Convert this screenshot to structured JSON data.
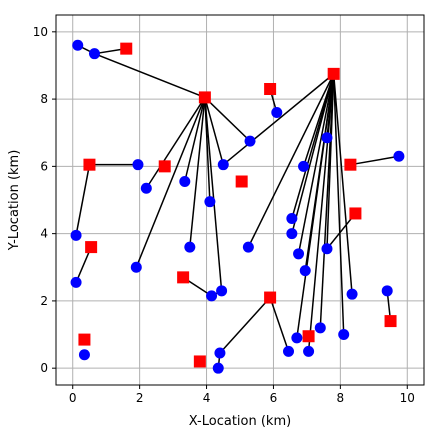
{
  "chart_data": {
    "type": "scatter",
    "xlabel": "X-Location (km)",
    "ylabel": "Y-Location (km)",
    "xlim": [
      -0.5,
      10.5
    ],
    "ylim": [
      -0.5,
      10.5
    ],
    "xticks": [
      0,
      2,
      4,
      6,
      8,
      10
    ],
    "yticks": [
      0,
      2,
      4,
      6,
      8,
      10
    ],
    "grid": true,
    "colors": {
      "customer": "#0000ff",
      "facility": "#ff0000",
      "link": "#000000",
      "grid": "#b0b0b0"
    },
    "facilities": [
      {
        "x": 1.6,
        "y": 9.5
      },
      {
        "x": 3.95,
        "y": 8.05
      },
      {
        "x": 5.9,
        "y": 8.3
      },
      {
        "x": 7.8,
        "y": 8.75
      },
      {
        "x": 0.5,
        "y": 6.05
      },
      {
        "x": 2.75,
        "y": 6.0
      },
      {
        "x": 8.3,
        "y": 6.05
      },
      {
        "x": 5.05,
        "y": 5.55
      },
      {
        "x": 8.45,
        "y": 4.6
      },
      {
        "x": 0.55,
        "y": 3.6
      },
      {
        "x": 3.3,
        "y": 2.7
      },
      {
        "x": 5.9,
        "y": 2.1
      },
      {
        "x": 9.5,
        "y": 1.4
      },
      {
        "x": 0.35,
        "y": 0.85
      },
      {
        "x": 7.05,
        "y": 0.95
      },
      {
        "x": 3.8,
        "y": 0.2
      }
    ],
    "customers": [
      {
        "x": 0.15,
        "y": 9.6
      },
      {
        "x": 0.65,
        "y": 9.35
      },
      {
        "x": 6.1,
        "y": 7.6
      },
      {
        "x": 5.3,
        "y": 6.75
      },
      {
        "x": 7.6,
        "y": 6.85
      },
      {
        "x": 4.5,
        "y": 6.05
      },
      {
        "x": 6.9,
        "y": 6.0
      },
      {
        "x": 9.75,
        "y": 6.3
      },
      {
        "x": 1.95,
        "y": 6.05
      },
      {
        "x": 2.2,
        "y": 5.35
      },
      {
        "x": 3.35,
        "y": 5.55
      },
      {
        "x": 4.1,
        "y": 4.95
      },
      {
        "x": 6.55,
        "y": 4.45
      },
      {
        "x": 6.55,
        "y": 4.0
      },
      {
        "x": 0.1,
        "y": 3.95
      },
      {
        "x": 3.5,
        "y": 3.6
      },
      {
        "x": 5.25,
        "y": 3.6
      },
      {
        "x": 7.6,
        "y": 3.55
      },
      {
        "x": 6.75,
        "y": 3.4
      },
      {
        "x": 1.9,
        "y": 3.0
      },
      {
        "x": 6.95,
        "y": 2.9
      },
      {
        "x": 0.1,
        "y": 2.55
      },
      {
        "x": 4.45,
        "y": 2.3
      },
      {
        "x": 4.15,
        "y": 2.15
      },
      {
        "x": 8.35,
        "y": 2.2
      },
      {
        "x": 9.4,
        "y": 2.3
      },
      {
        "x": 7.4,
        "y": 1.2
      },
      {
        "x": 8.1,
        "y": 1.0
      },
      {
        "x": 6.7,
        "y": 0.9
      },
      {
        "x": 6.45,
        "y": 0.5
      },
      {
        "x": 7.05,
        "y": 0.5
      },
      {
        "x": 4.4,
        "y": 0.45
      },
      {
        "x": 0.35,
        "y": 0.4
      },
      {
        "x": 4.35,
        "y": 0.0
      }
    ],
    "links": [
      [
        0.65,
        9.35,
        1.6,
        9.5
      ],
      [
        0.15,
        9.6,
        0.65,
        9.35
      ],
      [
        0.65,
        9.35,
        3.95,
        8.05
      ],
      [
        3.95,
        8.05,
        5.3,
        6.75
      ],
      [
        3.95,
        8.05,
        4.5,
        6.05
      ],
      [
        3.95,
        8.05,
        3.35,
        5.55
      ],
      [
        3.95,
        8.05,
        4.1,
        4.95
      ],
      [
        3.95,
        8.05,
        3.5,
        3.6
      ],
      [
        3.95,
        8.05,
        1.9,
        3.0
      ],
      [
        3.95,
        8.05,
        2.2,
        5.35
      ],
      [
        3.95,
        8.05,
        4.45,
        2.3
      ],
      [
        5.9,
        8.3,
        6.1,
        7.6
      ],
      [
        7.8,
        8.75,
        4.5,
        6.05
      ],
      [
        7.8,
        8.75,
        7.6,
        6.85
      ],
      [
        7.8,
        8.75,
        6.9,
        6.0
      ],
      [
        7.8,
        8.75,
        5.25,
        3.6
      ],
      [
        7.8,
        8.75,
        6.55,
        4.45
      ],
      [
        7.8,
        8.75,
        6.55,
        4.0
      ],
      [
        7.8,
        8.75,
        6.75,
        3.4
      ],
      [
        7.8,
        8.75,
        6.95,
        2.9
      ],
      [
        7.8,
        8.75,
        7.6,
        3.55
      ],
      [
        7.8,
        8.75,
        8.35,
        2.2
      ],
      [
        7.8,
        8.75,
        7.4,
        1.2
      ],
      [
        7.8,
        8.75,
        8.1,
        1.0
      ],
      [
        7.8,
        8.75,
        6.7,
        0.9
      ],
      [
        7.8,
        8.75,
        7.05,
        0.5
      ],
      [
        8.3,
        6.05,
        9.75,
        6.3
      ],
      [
        0.5,
        6.05,
        1.95,
        6.05
      ],
      [
        0.5,
        6.05,
        0.1,
        3.95
      ],
      [
        0.55,
        3.6,
        0.1,
        2.55
      ],
      [
        8.45,
        4.6,
        7.6,
        3.55
      ],
      [
        3.3,
        2.7,
        4.15,
        2.15
      ],
      [
        4.15,
        2.15,
        4.45,
        2.3
      ],
      [
        5.9,
        2.1,
        4.4,
        0.45
      ],
      [
        5.9,
        2.1,
        6.45,
        0.5
      ],
      [
        9.5,
        1.4,
        9.4,
        2.3
      ],
      [
        4.4,
        0.45,
        4.35,
        0.0
      ]
    ]
  }
}
